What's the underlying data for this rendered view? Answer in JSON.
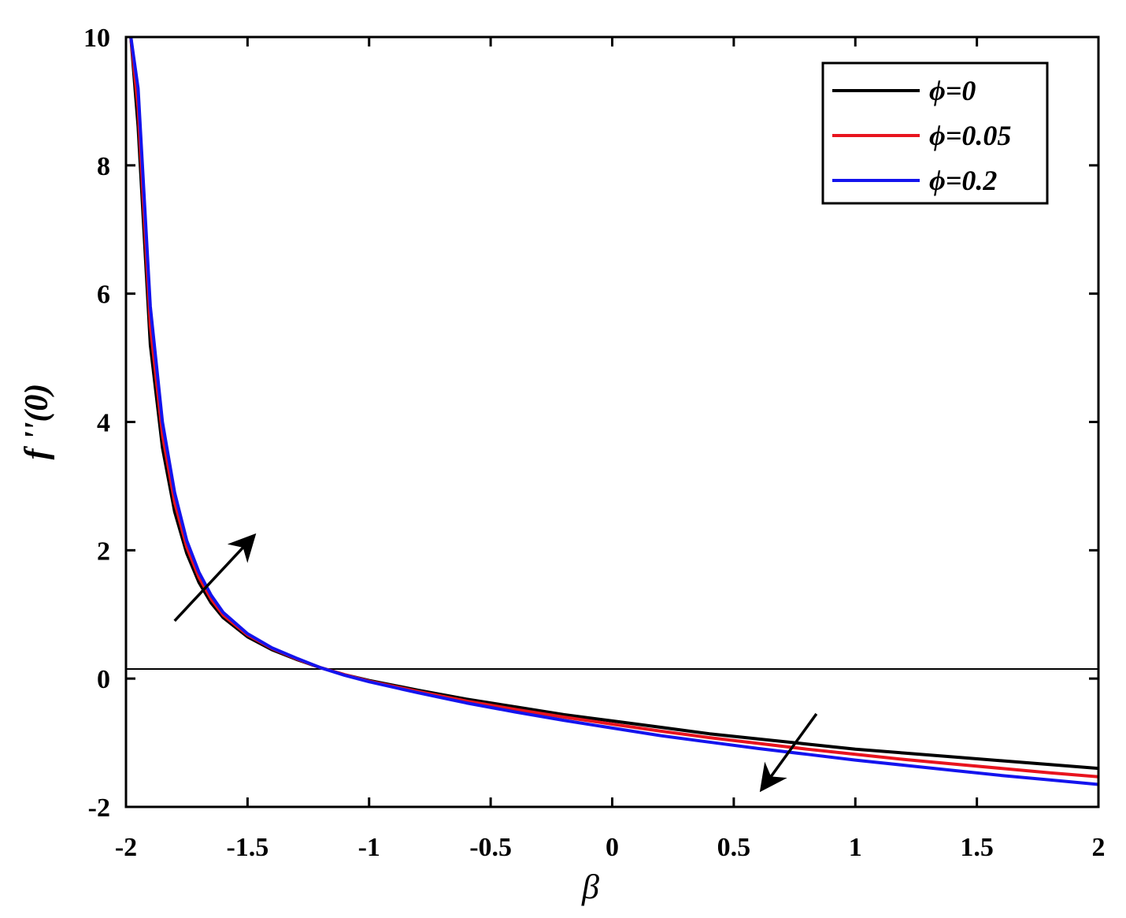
{
  "chart_data": {
    "type": "line",
    "xlabel": "β",
    "ylabel": "f ''(0)",
    "xlim": [
      -2,
      2
    ],
    "ylim": [
      -2,
      10
    ],
    "xticks": [
      "-2",
      "-1.5",
      "-1",
      "-0.5",
      "0",
      "0.5",
      "1",
      "1.5",
      "2"
    ],
    "yticks": [
      "-2",
      "0",
      "2",
      "4",
      "6",
      "8",
      "10"
    ],
    "grid": false,
    "legend_position": "top-right",
    "reference_line_y": 0.15,
    "series": [
      {
        "name": "ϕ=0",
        "color": "#000000",
        "x": [
          -1.98,
          -1.95,
          -1.9,
          -1.85,
          -1.8,
          -1.75,
          -1.7,
          -1.65,
          -1.6,
          -1.5,
          -1.4,
          -1.3,
          -1.2,
          -1.1,
          -1.0,
          -0.8,
          -0.6,
          -0.4,
          -0.2,
          0.0,
          0.2,
          0.4,
          0.6,
          0.8,
          1.0,
          1.2,
          1.4,
          1.6,
          1.8,
          2.0
        ],
        "y": [
          10.0,
          8.6,
          5.2,
          3.6,
          2.6,
          1.95,
          1.5,
          1.18,
          0.95,
          0.65,
          0.45,
          0.3,
          0.17,
          0.06,
          -0.03,
          -0.18,
          -0.32,
          -0.44,
          -0.56,
          -0.66,
          -0.76,
          -0.86,
          -0.94,
          -1.02,
          -1.1,
          -1.16,
          -1.22,
          -1.28,
          -1.34,
          -1.4
        ]
      },
      {
        "name": "ϕ=0.05",
        "color": "#e8141e",
        "x": [
          -1.98,
          -1.95,
          -1.9,
          -1.85,
          -1.8,
          -1.75,
          -1.7,
          -1.65,
          -1.6,
          -1.5,
          -1.4,
          -1.3,
          -1.2,
          -1.1,
          -1.0,
          -0.8,
          -0.6,
          -0.4,
          -0.2,
          0.0,
          0.2,
          0.4,
          0.6,
          0.8,
          1.0,
          1.2,
          1.4,
          1.6,
          1.8,
          2.0
        ],
        "y": [
          10.0,
          8.9,
          5.5,
          3.8,
          2.75,
          2.05,
          1.58,
          1.24,
          0.99,
          0.68,
          0.47,
          0.31,
          0.17,
          0.06,
          -0.04,
          -0.2,
          -0.35,
          -0.48,
          -0.6,
          -0.71,
          -0.82,
          -0.92,
          -1.01,
          -1.1,
          -1.18,
          -1.26,
          -1.33,
          -1.4,
          -1.47,
          -1.53
        ]
      },
      {
        "name": "ϕ=0.2",
        "color": "#1414ee",
        "x": [
          -1.98,
          -1.95,
          -1.9,
          -1.85,
          -1.8,
          -1.75,
          -1.7,
          -1.65,
          -1.6,
          -1.5,
          -1.4,
          -1.3,
          -1.2,
          -1.1,
          -1.0,
          -0.8,
          -0.6,
          -0.4,
          -0.2,
          0.0,
          0.2,
          0.4,
          0.6,
          0.8,
          1.0,
          1.2,
          1.4,
          1.6,
          1.8,
          2.0
        ],
        "y": [
          10.0,
          9.2,
          5.8,
          4.0,
          2.9,
          2.15,
          1.66,
          1.3,
          1.03,
          0.7,
          0.48,
          0.32,
          0.17,
          0.05,
          -0.05,
          -0.22,
          -0.38,
          -0.52,
          -0.65,
          -0.77,
          -0.89,
          -0.99,
          -1.09,
          -1.18,
          -1.27,
          -1.35,
          -1.43,
          -1.51,
          -1.58,
          -1.65
        ]
      }
    ],
    "annotations": [
      {
        "type": "arrow",
        "from": [
          -1.8,
          0.9
        ],
        "to": [
          -1.48,
          2.2
        ]
      },
      {
        "type": "arrow",
        "from": [
          0.84,
          -0.55
        ],
        "to": [
          0.62,
          -1.7
        ]
      }
    ]
  }
}
